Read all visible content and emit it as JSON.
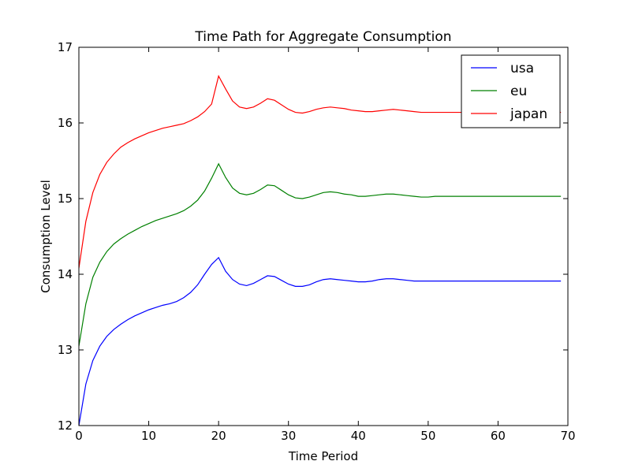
{
  "chart_data": {
    "type": "line",
    "title": "Time Path for Aggregate Consumption",
    "xlabel": "Time Period",
    "ylabel": "Consumption Level",
    "xlim": [
      0,
      70
    ],
    "ylim": [
      12,
      17
    ],
    "xticks": [
      0,
      10,
      20,
      30,
      40,
      50,
      60,
      70
    ],
    "yticks": [
      12,
      13,
      14,
      15,
      16,
      17
    ],
    "grid": false,
    "legend_position": "top-right",
    "x": [
      0,
      1,
      2,
      3,
      4,
      5,
      6,
      7,
      8,
      9,
      10,
      11,
      12,
      13,
      14,
      15,
      16,
      17,
      18,
      19,
      20,
      21,
      22,
      23,
      24,
      25,
      26,
      27,
      28,
      29,
      30,
      31,
      32,
      33,
      34,
      35,
      36,
      37,
      38,
      39,
      40,
      41,
      42,
      43,
      44,
      45,
      46,
      47,
      48,
      49,
      50,
      51,
      52,
      53,
      54,
      55,
      56,
      57,
      58,
      59,
      60,
      61,
      62,
      63,
      64,
      65,
      66,
      67,
      68,
      69
    ],
    "series": [
      {
        "name": "usa",
        "color": "#0000ff",
        "values": [
          12.0,
          12.55,
          12.86,
          13.05,
          13.18,
          13.27,
          13.34,
          13.4,
          13.45,
          13.49,
          13.53,
          13.56,
          13.59,
          13.61,
          13.64,
          13.69,
          13.76,
          13.86,
          14.0,
          14.13,
          14.22,
          14.04,
          13.93,
          13.87,
          13.85,
          13.88,
          13.93,
          13.98,
          13.97,
          13.92,
          13.87,
          13.84,
          13.84,
          13.86,
          13.9,
          13.93,
          13.94,
          13.93,
          13.92,
          13.91,
          13.9,
          13.9,
          13.91,
          13.93,
          13.94,
          13.94,
          13.93,
          13.92,
          13.91,
          13.91,
          13.91,
          13.91,
          13.91,
          13.91,
          13.91,
          13.91,
          13.91,
          13.91,
          13.91,
          13.91,
          13.91,
          13.91,
          13.91,
          13.91,
          13.91,
          13.91,
          13.91,
          13.91,
          13.91,
          13.91
        ]
      },
      {
        "name": "eu",
        "color": "#008000",
        "values": [
          13.05,
          13.61,
          13.96,
          14.16,
          14.3,
          14.4,
          14.47,
          14.53,
          14.58,
          14.63,
          14.67,
          14.71,
          14.74,
          14.77,
          14.8,
          14.84,
          14.9,
          14.98,
          15.1,
          15.27,
          15.46,
          15.28,
          15.14,
          15.07,
          15.05,
          15.07,
          15.12,
          15.18,
          15.17,
          15.11,
          15.05,
          15.01,
          15.0,
          15.02,
          15.05,
          15.08,
          15.09,
          15.08,
          15.06,
          15.05,
          15.03,
          15.03,
          15.04,
          15.05,
          15.06,
          15.06,
          15.05,
          15.04,
          15.03,
          15.02,
          15.02,
          15.03,
          15.03,
          15.03,
          15.03,
          15.03,
          15.03,
          15.03,
          15.03,
          15.03,
          15.03,
          15.03,
          15.03,
          15.03,
          15.03,
          15.03,
          15.03,
          15.03,
          15.03,
          15.03
        ]
      },
      {
        "name": "japan",
        "color": "#ff0000",
        "values": [
          14.08,
          14.7,
          15.08,
          15.32,
          15.48,
          15.59,
          15.68,
          15.74,
          15.79,
          15.83,
          15.87,
          15.9,
          15.93,
          15.95,
          15.97,
          15.99,
          16.03,
          16.08,
          16.15,
          16.25,
          16.62,
          16.45,
          16.29,
          16.21,
          16.19,
          16.21,
          16.26,
          16.32,
          16.3,
          16.24,
          16.18,
          16.14,
          16.13,
          16.15,
          16.18,
          16.2,
          16.21,
          16.2,
          16.19,
          16.17,
          16.16,
          16.15,
          16.15,
          16.16,
          16.17,
          16.18,
          16.17,
          16.16,
          16.15,
          16.14,
          16.14,
          16.14,
          16.14,
          16.14,
          16.14,
          16.14,
          16.14,
          16.14,
          16.14,
          16.14,
          16.14,
          16.14,
          16.14,
          16.14,
          16.14,
          16.14,
          16.14,
          16.14,
          16.14,
          16.14
        ]
      }
    ]
  }
}
